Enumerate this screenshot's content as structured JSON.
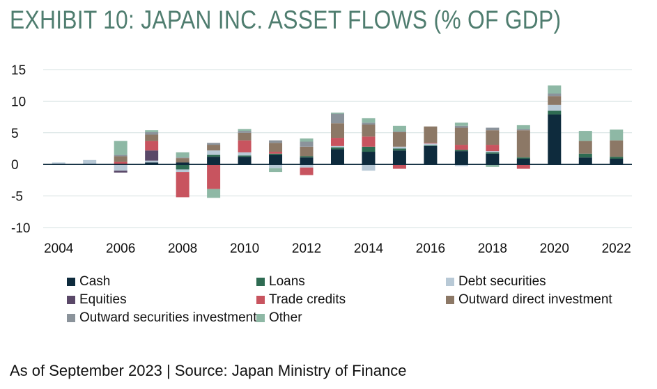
{
  "title": "EXHIBIT 10: JAPAN INC. ASSET FLOWS (% OF GDP)",
  "source": "As of September 2023 | Source: Japan Ministry of Finance",
  "chart_data": {
    "type": "bar",
    "stacked": true,
    "title": "EXHIBIT 10: JAPAN INC. ASSET FLOWS (% OF GDP)",
    "xlabel": "",
    "ylabel": "",
    "categories": [
      "2004",
      "2005",
      "2006",
      "2007",
      "2008",
      "2009",
      "2010",
      "2011",
      "2012",
      "2013",
      "2014",
      "2015",
      "2016",
      "2017",
      "2018",
      "2019",
      "2020",
      "2021",
      "2022"
    ],
    "x_tick_labels": [
      "2004",
      "2006",
      "2008",
      "2010",
      "2012",
      "2014",
      "2016",
      "2018",
      "2020",
      "2022"
    ],
    "ylim": [
      -10,
      15
    ],
    "y_ticks": [
      15,
      10,
      5,
      0,
      -5,
      -10
    ],
    "y_tick_labels": [
      "15",
      "10",
      "5",
      "0",
      "-5",
      "-10"
    ],
    "grid": true,
    "legend_position": "bottom",
    "series": [
      {
        "name": "Cash",
        "color": "#0e2b3d",
        "values": [
          0,
          0,
          -0.1,
          0.3,
          0.3,
          1.2,
          1.2,
          1.5,
          1.1,
          2.4,
          2.0,
          2.2,
          2.9,
          2.1,
          1.7,
          0.9,
          7.9,
          1.1,
          0.9
        ]
      },
      {
        "name": "Loans",
        "color": "#2e6b52",
        "values": [
          0,
          0,
          0,
          0,
          -0.8,
          0.3,
          0.2,
          0.2,
          0.2,
          0.3,
          0.8,
          0.3,
          0.1,
          0.2,
          0.2,
          0.2,
          0.6,
          0.6,
          0.3
        ]
      },
      {
        "name": "Debt securities",
        "color": "#b8c9d6",
        "values": [
          0.3,
          0.7,
          -0.9,
          0.3,
          -0.4,
          0.7,
          0.5,
          -0.6,
          -0.5,
          0.2,
          -1.0,
          0.3,
          0.3,
          -0.3,
          0.2,
          0,
          0.9,
          0,
          0
        ]
      },
      {
        "name": "Equities",
        "color": "#5a4868",
        "values": [
          0,
          0,
          -0.3,
          1.6,
          0,
          0,
          0,
          0,
          0,
          0,
          0,
          0,
          0,
          0,
          0,
          0,
          0,
          0,
          0
        ]
      },
      {
        "name": "Trade credits",
        "color": "#c8545f",
        "values": [
          0,
          0,
          0.4,
          1.5,
          -4.0,
          -3.9,
          1.9,
          0.3,
          -1.2,
          1.3,
          1.6,
          -0.7,
          0.1,
          0.8,
          1.0,
          -0.7,
          0,
          0,
          0
        ]
      },
      {
        "name": "Outward direct investment",
        "color": "#8c7866",
        "values": [
          0,
          0,
          0.9,
          1.0,
          0.7,
          0.9,
          1.2,
          1.4,
          1.5,
          2.3,
          1.9,
          2.3,
          2.6,
          2.7,
          2.3,
          4.3,
          1.4,
          2.0,
          2.6
        ]
      },
      {
        "name": "Outward securities investment",
        "color": "#8b939b",
        "values": [
          0,
          0,
          0.2,
          0.4,
          0.1,
          0.3,
          0.3,
          0.4,
          0.8,
          1.5,
          0.3,
          0.1,
          0,
          0.3,
          0.4,
          0.2,
          0.4,
          0,
          0
        ]
      },
      {
        "name": "Other",
        "color": "#8eb8a5",
        "values": [
          0,
          0,
          2.2,
          0.3,
          0.8,
          -1.4,
          0.3,
          -0.6,
          0.5,
          0.2,
          0.7,
          0.9,
          0,
          0.5,
          -0.4,
          0.6,
          1.3,
          1.6,
          1.7
        ]
      }
    ]
  }
}
